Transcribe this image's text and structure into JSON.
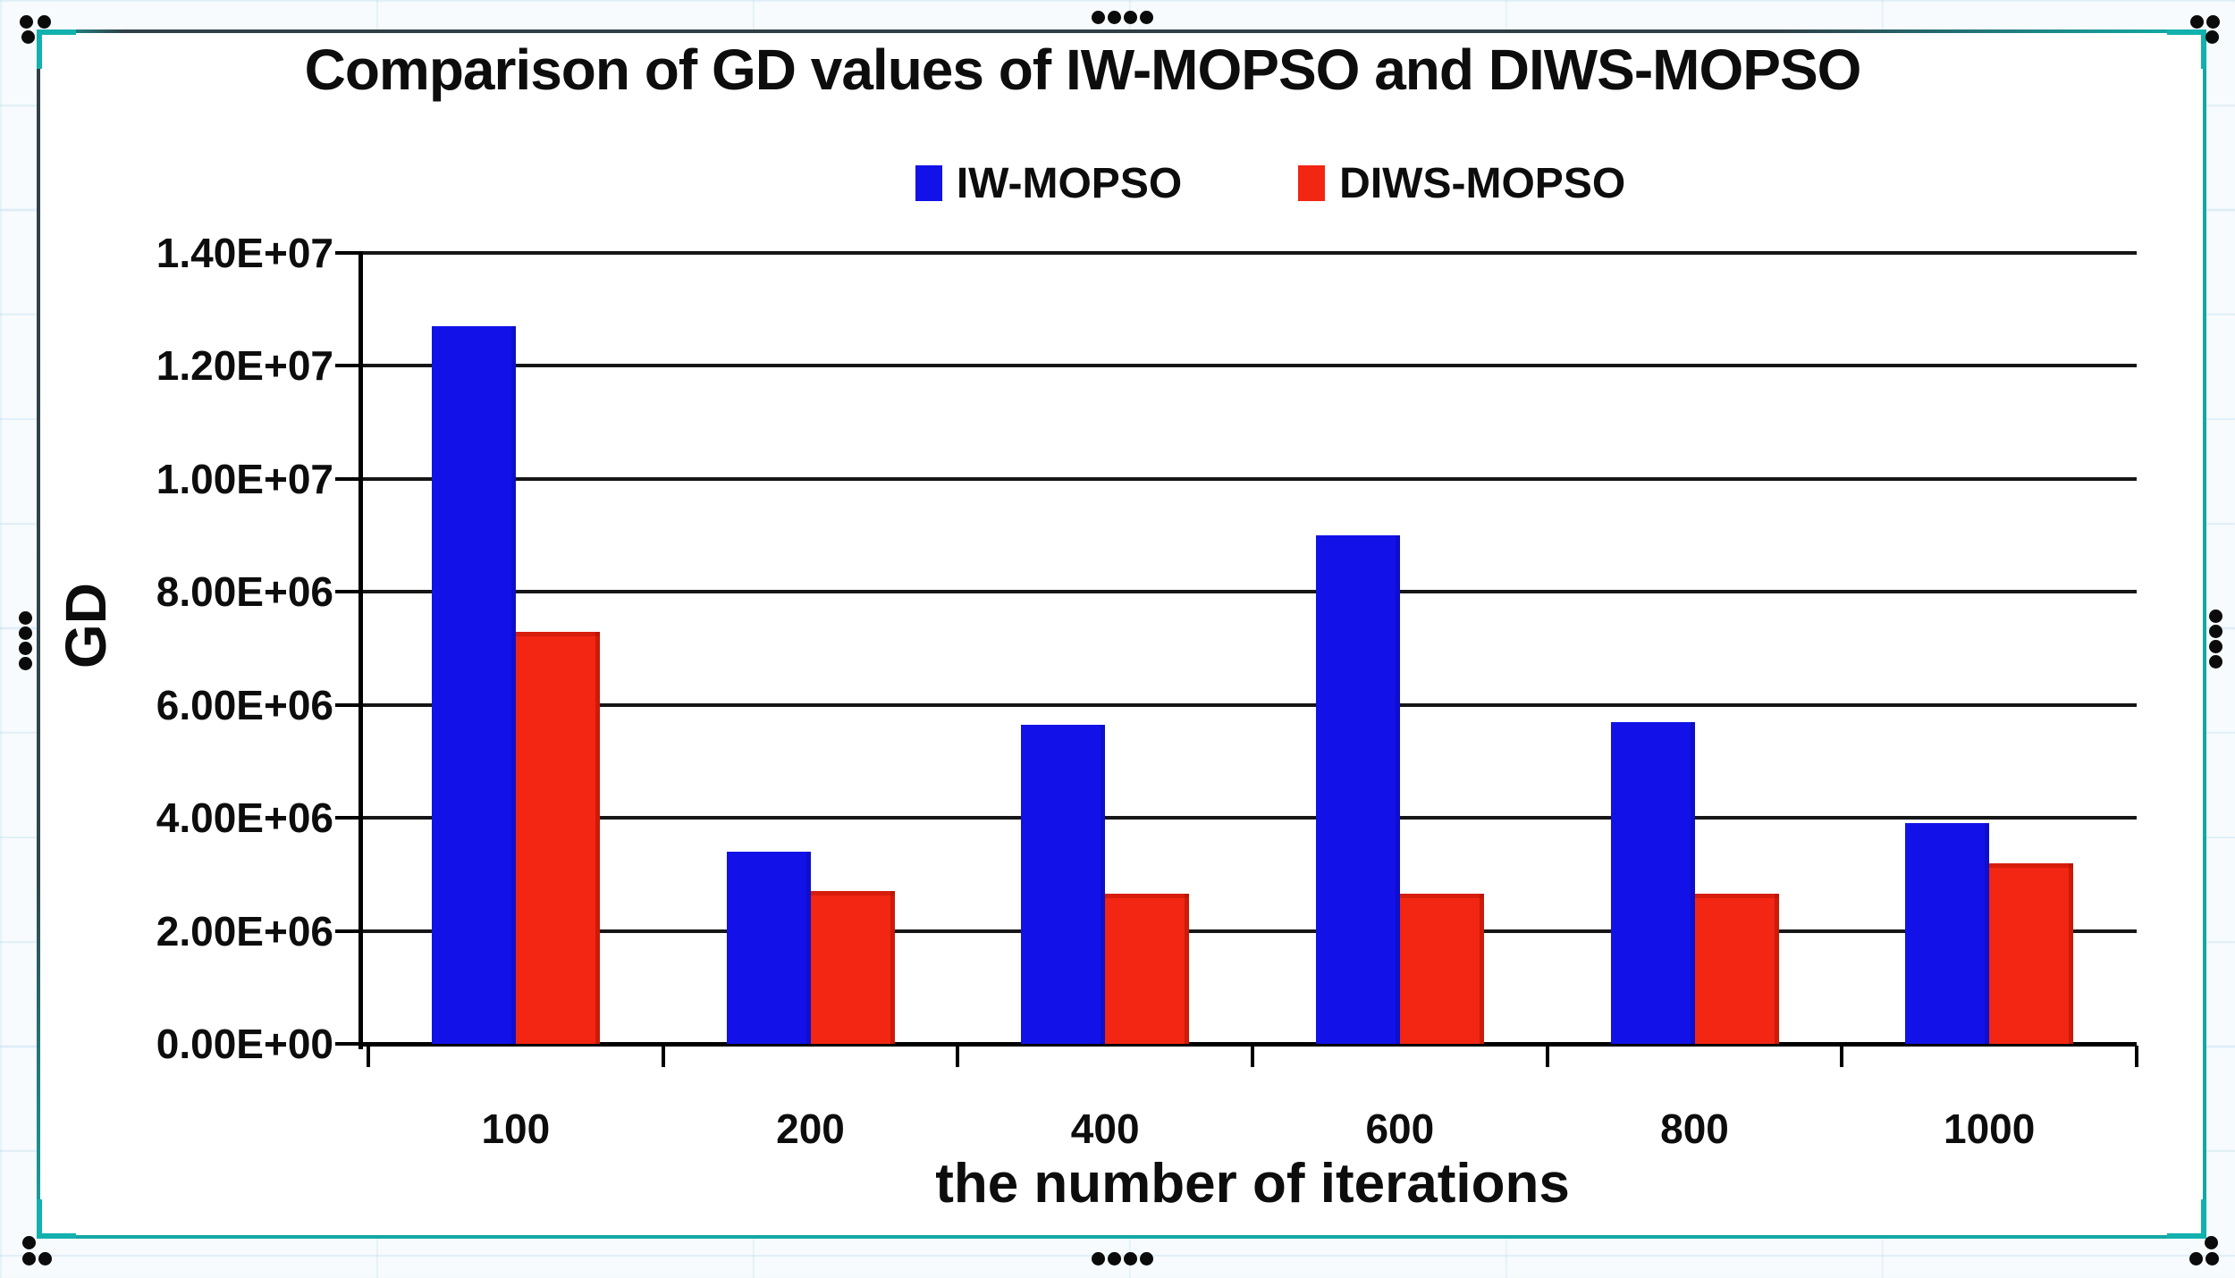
{
  "chart_data": {
    "type": "bar",
    "title": "Comparison of GD values of IW-MOPSO and DIWS-MOPSO",
    "xlabel": "the number of iterations",
    "ylabel": "GD",
    "categories": [
      "100",
      "200",
      "400",
      "600",
      "800",
      "1000"
    ],
    "series": [
      {
        "name": "IW-MOPSO",
        "color": "#1212e8",
        "values": [
          12700000,
          3400000,
          5650000,
          9000000,
          5700000,
          3900000
        ]
      },
      {
        "name": "DIWS-MOPSO",
        "color": "#f22613",
        "values": [
          7300000,
          2700000,
          2650000,
          2650000,
          2650000,
          3200000
        ]
      }
    ],
    "ylim": [
      0,
      14000000
    ],
    "ytick_interval": 2000000,
    "ytick_labels": [
      "1.40E+07",
      "1.20E+07",
      "1.00E+07",
      "8.00E+06",
      "6.00E+06",
      "4.00E+06",
      "2.00E+06",
      "0.00E+00"
    ],
    "grid": "horizontal-black",
    "legend_position": "top-center"
  }
}
